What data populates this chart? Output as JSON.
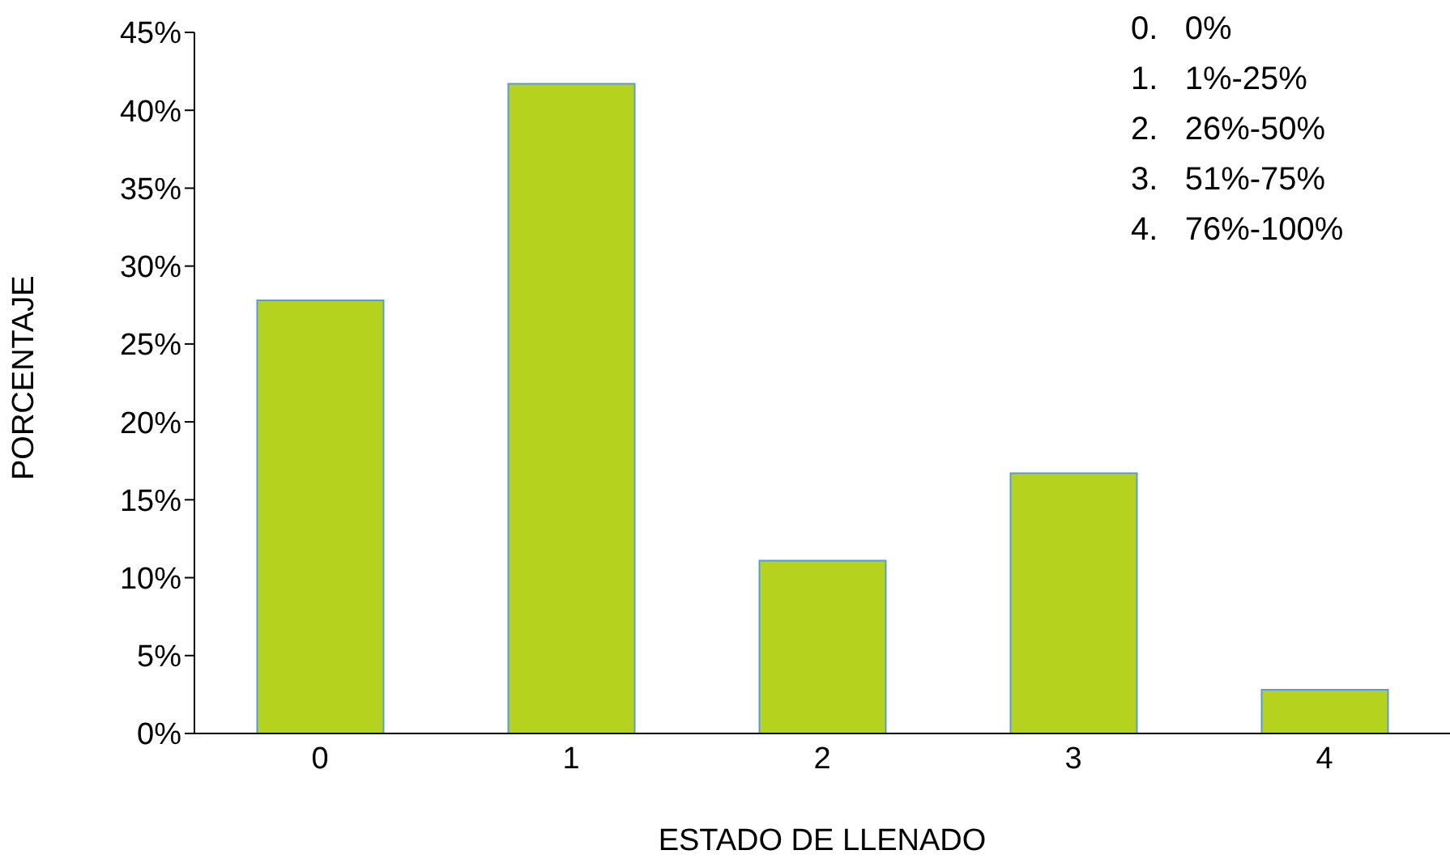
{
  "chart_data": {
    "type": "bar",
    "xlabel": "ESTADO DE LLENADO",
    "ylabel": "PORCENTAJE",
    "categories": [
      "0",
      "1",
      "2",
      "3",
      "4"
    ],
    "values": [
      27.8,
      41.7,
      11.1,
      16.7,
      2.8
    ],
    "color": "#b5d31e",
    "ylim": [
      0,
      45
    ],
    "yticks": [
      {
        "value": 0,
        "label": "0%"
      },
      {
        "value": 5,
        "label": "5%"
      },
      {
        "value": 10,
        "label": "10%"
      },
      {
        "value": 15,
        "label": "15%"
      },
      {
        "value": 20,
        "label": "20%"
      },
      {
        "value": 25,
        "label": "25%"
      },
      {
        "value": 30,
        "label": "30%"
      },
      {
        "value": 35,
        "label": "35%"
      },
      {
        "value": 40,
        "label": "40%"
      },
      {
        "value": 45,
        "label": "45%"
      }
    ],
    "grid": false,
    "legend": false,
    "annotations": [
      "0.   0%",
      "1.   1%-25%",
      "2.   26%-50%",
      "3.   51%-75%",
      "4.   76%-100%"
    ]
  }
}
